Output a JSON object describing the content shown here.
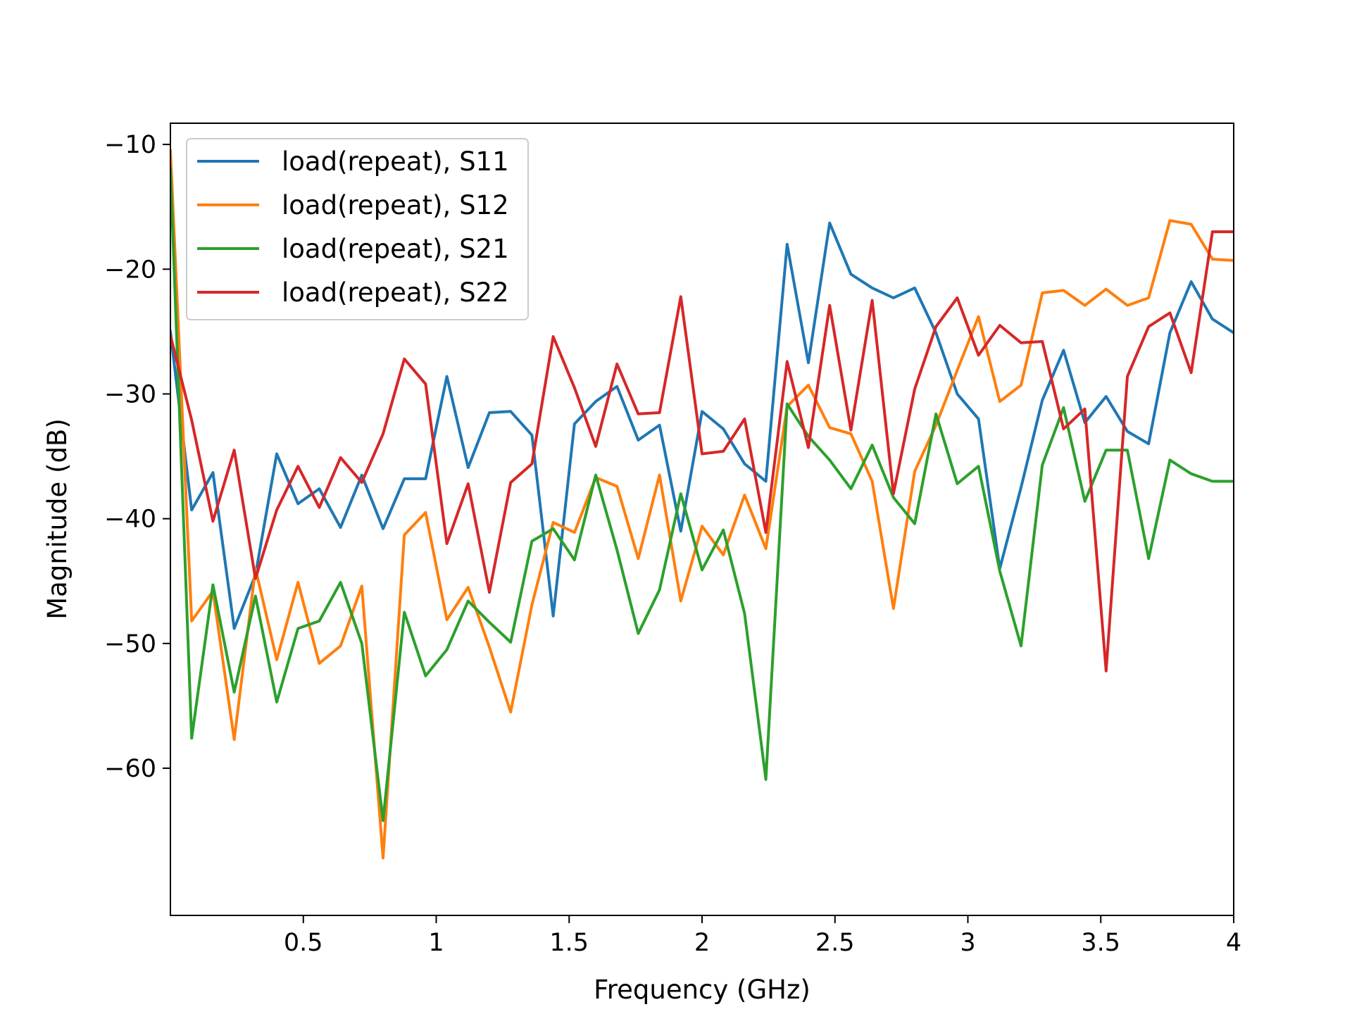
{
  "chart_data": {
    "type": "line",
    "title": "",
    "xlabel": "Frequency (GHz)",
    "ylabel": "Magnitude (dB)",
    "xlim": [
      0,
      4
    ],
    "ylim": [
      -71.8,
      -8.3
    ],
    "xticks": [
      {
        "value": 0.5,
        "label": "0.5"
      },
      {
        "value": 1,
        "label": "1"
      },
      {
        "value": 1.5,
        "label": "1.5"
      },
      {
        "value": 2,
        "label": "2"
      },
      {
        "value": 2.5,
        "label": "2.5"
      },
      {
        "value": 3,
        "label": "3"
      },
      {
        "value": 3.5,
        "label": "3.5"
      },
      {
        "value": 4,
        "label": "4"
      }
    ],
    "yticks": [
      {
        "value": -10,
        "label": "−10"
      },
      {
        "value": -20,
        "label": "−20"
      },
      {
        "value": -30,
        "label": "−30"
      },
      {
        "value": -40,
        "label": "−40"
      },
      {
        "value": -50,
        "label": "−50"
      },
      {
        "value": -60,
        "label": "−60"
      }
    ],
    "grid": false,
    "legend_position": "upper-left",
    "x": [
      0.0,
      0.08,
      0.16,
      0.24,
      0.32,
      0.4,
      0.48,
      0.56,
      0.64,
      0.72,
      0.8,
      0.88,
      0.96,
      1.04,
      1.12,
      1.2,
      1.28,
      1.36,
      1.44,
      1.52,
      1.6,
      1.68,
      1.76,
      1.84,
      1.92,
      2.0,
      2.08,
      2.16,
      2.24,
      2.32,
      2.4,
      2.48,
      2.56,
      2.64,
      2.72,
      2.8,
      2.88,
      2.96,
      3.04,
      3.12,
      3.2,
      3.28,
      3.36,
      3.44,
      3.52,
      3.6,
      3.68,
      3.76,
      3.84,
      3.92,
      4.0
    ],
    "series": [
      {
        "name": "load(repeat), S11",
        "color": "#1f77b4",
        "values": [
          -25.0,
          -39.3,
          -36.3,
          -48.8,
          -44.5,
          -34.8,
          -38.8,
          -37.6,
          -40.7,
          -36.5,
          -40.8,
          -36.8,
          -36.8,
          -28.6,
          -35.9,
          -31.5,
          -31.4,
          -33.3,
          -47.8,
          -32.4,
          -30.6,
          -29.4,
          -33.7,
          -32.5,
          -41.0,
          -31.4,
          -32.8,
          -35.6,
          -37.0,
          -18.0,
          -27.5,
          -16.3,
          -20.4,
          -21.5,
          -22.3,
          -21.5,
          -25.1,
          -30.0,
          -32.0,
          -44.0,
          -37.5,
          -30.5,
          -26.5,
          -32.3,
          -30.2,
          -33.0,
          -34.0,
          -25.1,
          -21.0,
          -24.0,
          -25.1
        ]
      },
      {
        "name": "load(repeat), S12",
        "color": "#ff7f0e",
        "values": [
          -10.5,
          -48.2,
          -45.8,
          -57.7,
          -44.0,
          -51.3,
          -45.1,
          -51.6,
          -50.2,
          -45.4,
          -67.2,
          -41.3,
          -39.5,
          -48.1,
          -45.5,
          -50.3,
          -55.5,
          -46.9,
          -40.3,
          -41.1,
          -36.7,
          -37.4,
          -43.2,
          -36.5,
          -46.6,
          -40.6,
          -42.9,
          -38.1,
          -42.4,
          -31.0,
          -29.3,
          -32.7,
          -33.2,
          -37.0,
          -47.2,
          -36.2,
          -32.5,
          -28.1,
          -23.8,
          -30.6,
          -29.3,
          -21.9,
          -21.7,
          -22.9,
          -21.6,
          -22.9,
          -22.3,
          -16.1,
          -16.4,
          -19.2,
          -19.3
        ]
      },
      {
        "name": "load(repeat), S21",
        "color": "#2ca02c",
        "values": [
          -12.0,
          -57.6,
          -45.3,
          -53.9,
          -46.2,
          -54.7,
          -48.8,
          -48.2,
          -45.1,
          -50.0,
          -64.2,
          -47.5,
          -52.6,
          -50.5,
          -46.6,
          -48.3,
          -49.9,
          -41.8,
          -40.8,
          -43.3,
          -36.5,
          -42.5,
          -49.2,
          -45.7,
          -38.0,
          -44.1,
          -40.9,
          -47.6,
          -60.9,
          -30.8,
          -33.4,
          -35.3,
          -37.6,
          -34.1,
          -38.3,
          -40.4,
          -31.6,
          -37.2,
          -35.8,
          -44.2,
          -50.2,
          -35.7,
          -31.1,
          -38.6,
          -34.5,
          -34.5,
          -43.2,
          -35.3,
          -36.4,
          -37.0,
          -37.0
        ]
      },
      {
        "name": "load(repeat), S22",
        "color": "#d62728",
        "values": [
          -25.3,
          -32.1,
          -40.2,
          -34.5,
          -44.8,
          -39.3,
          -35.8,
          -39.1,
          -35.1,
          -37.1,
          -33.2,
          -27.2,
          -29.2,
          -42.0,
          -37.2,
          -45.9,
          -37.1,
          -35.6,
          -25.4,
          -29.5,
          -34.2,
          -27.6,
          -31.6,
          -31.5,
          -22.2,
          -34.8,
          -34.6,
          -32.0,
          -41.1,
          -27.4,
          -34.3,
          -22.9,
          -32.9,
          -22.5,
          -38.0,
          -29.6,
          -24.6,
          -22.3,
          -26.9,
          -24.5,
          -25.9,
          -25.8,
          -32.8,
          -31.2,
          -52.2,
          -28.6,
          -24.6,
          -23.5,
          -28.3,
          -17.0,
          -17.0
        ]
      }
    ]
  }
}
